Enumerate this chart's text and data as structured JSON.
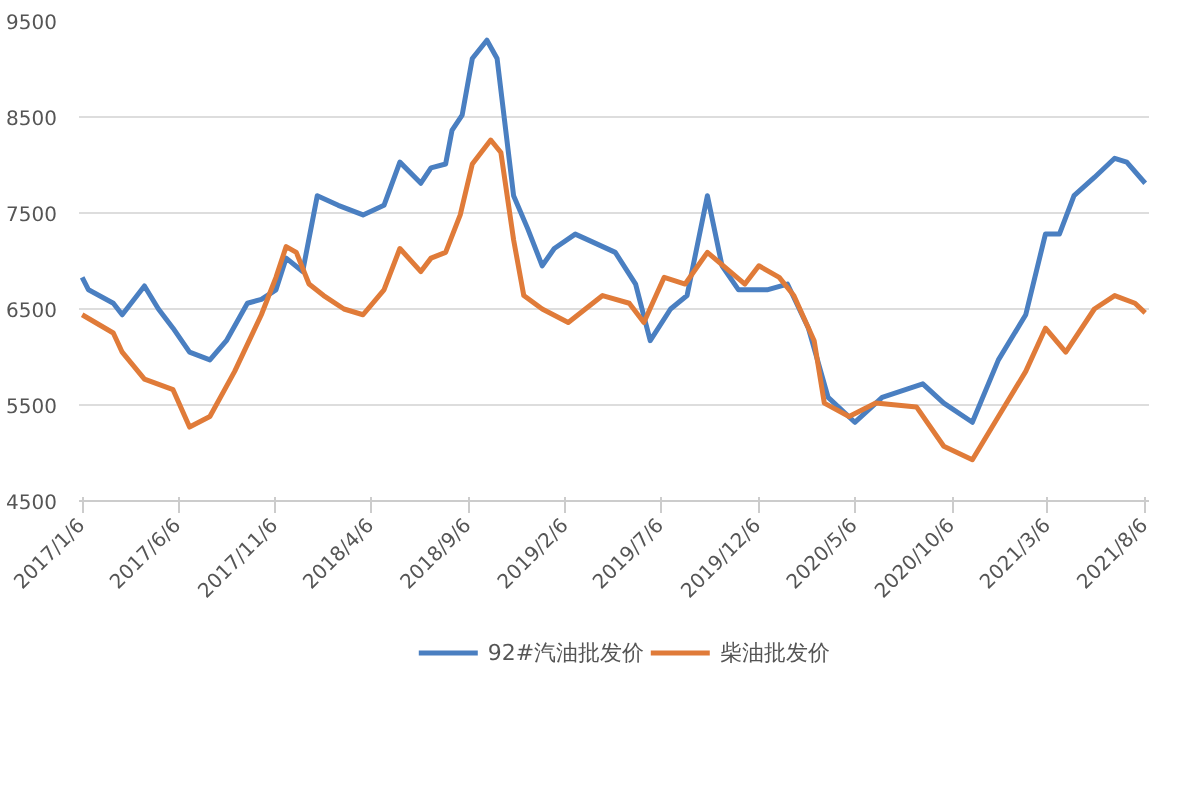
{
  "chart_data": {
    "type": "line",
    "xlim": [
      "2017-01-01",
      "2021-08-12"
    ],
    "xticks": [
      {
        "value": "2017-01-06",
        "label": "2017/1/6"
      },
      {
        "value": "2017-06-06",
        "label": "2017/6/6"
      },
      {
        "value": "2017-11-06",
        "label": "2017/11/6"
      },
      {
        "value": "2018-04-06",
        "label": "2018/4/6"
      },
      {
        "value": "2018-09-06",
        "label": "2018/9/6"
      },
      {
        "value": "2019-02-06",
        "label": "2019/2/6"
      },
      {
        "value": "2019-07-06",
        "label": "2019/7/6"
      },
      {
        "value": "2019-12-06",
        "label": "2019/12/6"
      },
      {
        "value": "2020-05-06",
        "label": "2020/5/6"
      },
      {
        "value": "2020-10-06",
        "label": "2020/10/6"
      },
      {
        "value": "2021-03-06",
        "label": "2021/3/6"
      },
      {
        "value": "2021-08-06",
        "label": "2021/8/6"
      }
    ],
    "ylim": [
      4500,
      9500
    ],
    "yticks": [
      4500,
      5500,
      6500,
      7500,
      8500,
      9500
    ],
    "grid": "y",
    "legend": "bottom",
    "marker": "none",
    "line_style": "solid",
    "series": [
      {
        "name": "92#汽油批发价",
        "color": "#4a7fc1",
        "x": [
          "2017-01-06",
          "2017-01-16",
          "2017-02-24",
          "2017-03-10",
          "2017-04-14",
          "2017-05-06",
          "2017-05-29",
          "2017-06-24",
          "2017-07-26",
          "2017-08-21",
          "2017-09-23",
          "2017-10-15",
          "2017-11-07",
          "2017-11-23",
          "2017-12-19",
          "2018-01-11",
          "2018-02-13",
          "2018-03-24",
          "2018-04-26",
          "2018-05-21",
          "2018-06-23",
          "2018-07-09",
          "2018-08-01",
          "2018-08-11",
          "2018-08-27",
          "2018-09-12",
          "2018-10-05",
          "2018-10-21",
          "2018-11-16",
          "2018-12-08",
          "2018-12-31",
          "2019-01-19",
          "2019-02-21",
          "2019-03-13",
          "2019-04-25",
          "2019-05-27",
          "2019-06-19",
          "2019-07-21",
          "2019-08-16",
          "2019-09-17",
          "2019-10-10",
          "2019-11-05",
          "2019-12-20",
          "2020-01-21",
          "2020-02-23",
          "2020-03-25",
          "2020-05-06",
          "2020-06-18",
          "2020-08-21",
          "2020-09-23",
          "2020-11-07",
          "2020-12-18",
          "2021-01-30",
          "2021-03-02",
          "2021-03-24",
          "2021-04-16",
          "2021-05-18",
          "2021-06-19",
          "2021-07-08",
          "2021-08-06"
        ],
        "values": [
          6830,
          6700,
          6560,
          6440,
          6740,
          6500,
          6300,
          6050,
          5970,
          6170,
          6560,
          6600,
          6700,
          7030,
          6890,
          7680,
          7580,
          7480,
          7580,
          8030,
          7810,
          7970,
          8010,
          8360,
          8520,
          9110,
          9300,
          9110,
          7680,
          7340,
          6950,
          7130,
          7280,
          7220,
          7090,
          6760,
          6170,
          6500,
          6640,
          7680,
          6950,
          6700,
          6700,
          6760,
          6300,
          5580,
          5320,
          5580,
          5720,
          5520,
          5320,
          5970,
          6440,
          7280,
          7280,
          7680,
          7870,
          8070,
          8030,
          7810
        ]
      },
      {
        "name": "柴油批发价",
        "color": "#e07b39",
        "x": [
          "2017-01-06",
          "2017-02-24",
          "2017-03-10",
          "2017-04-14",
          "2017-05-29",
          "2017-06-24",
          "2017-07-26",
          "2017-09-03",
          "2017-10-15",
          "2017-11-07",
          "2017-11-23",
          "2017-12-09",
          "2017-12-29",
          "2018-01-21",
          "2018-02-22",
          "2018-03-24",
          "2018-04-26",
          "2018-05-21",
          "2018-06-23",
          "2018-07-09",
          "2018-08-01",
          "2018-08-24",
          "2018-09-12",
          "2018-10-11",
          "2018-10-27",
          "2018-11-16",
          "2018-12-02",
          "2018-12-31",
          "2019-02-10",
          "2019-04-05",
          "2019-05-17",
          "2019-06-09",
          "2019-07-11",
          "2019-08-13",
          "2019-09-17",
          "2019-11-15",
          "2019-12-07",
          "2020-01-08",
          "2020-01-31",
          "2020-03-03",
          "2020-03-19",
          "2020-04-27",
          "2020-06-08",
          "2020-08-11",
          "2020-09-23",
          "2020-11-07",
          "2020-12-18",
          "2021-01-30",
          "2021-03-02",
          "2021-04-03",
          "2021-05-18",
          "2021-06-19",
          "2021-07-21",
          "2021-08-06"
        ],
        "values": [
          6440,
          6250,
          6050,
          5770,
          5660,
          5270,
          5380,
          5850,
          6440,
          6830,
          7150,
          7090,
          6760,
          6640,
          6500,
          6440,
          6700,
          7130,
          6890,
          7030,
          7090,
          7480,
          8010,
          8260,
          8130,
          7220,
          6640,
          6500,
          6360,
          6640,
          6560,
          6360,
          6830,
          6760,
          7090,
          6760,
          6950,
          6830,
          6640,
          6170,
          5520,
          5380,
          5520,
          5480,
          5070,
          4930,
          5380,
          5850,
          6300,
          6050,
          6500,
          6640,
          6560,
          6460
        ]
      }
    ]
  }
}
